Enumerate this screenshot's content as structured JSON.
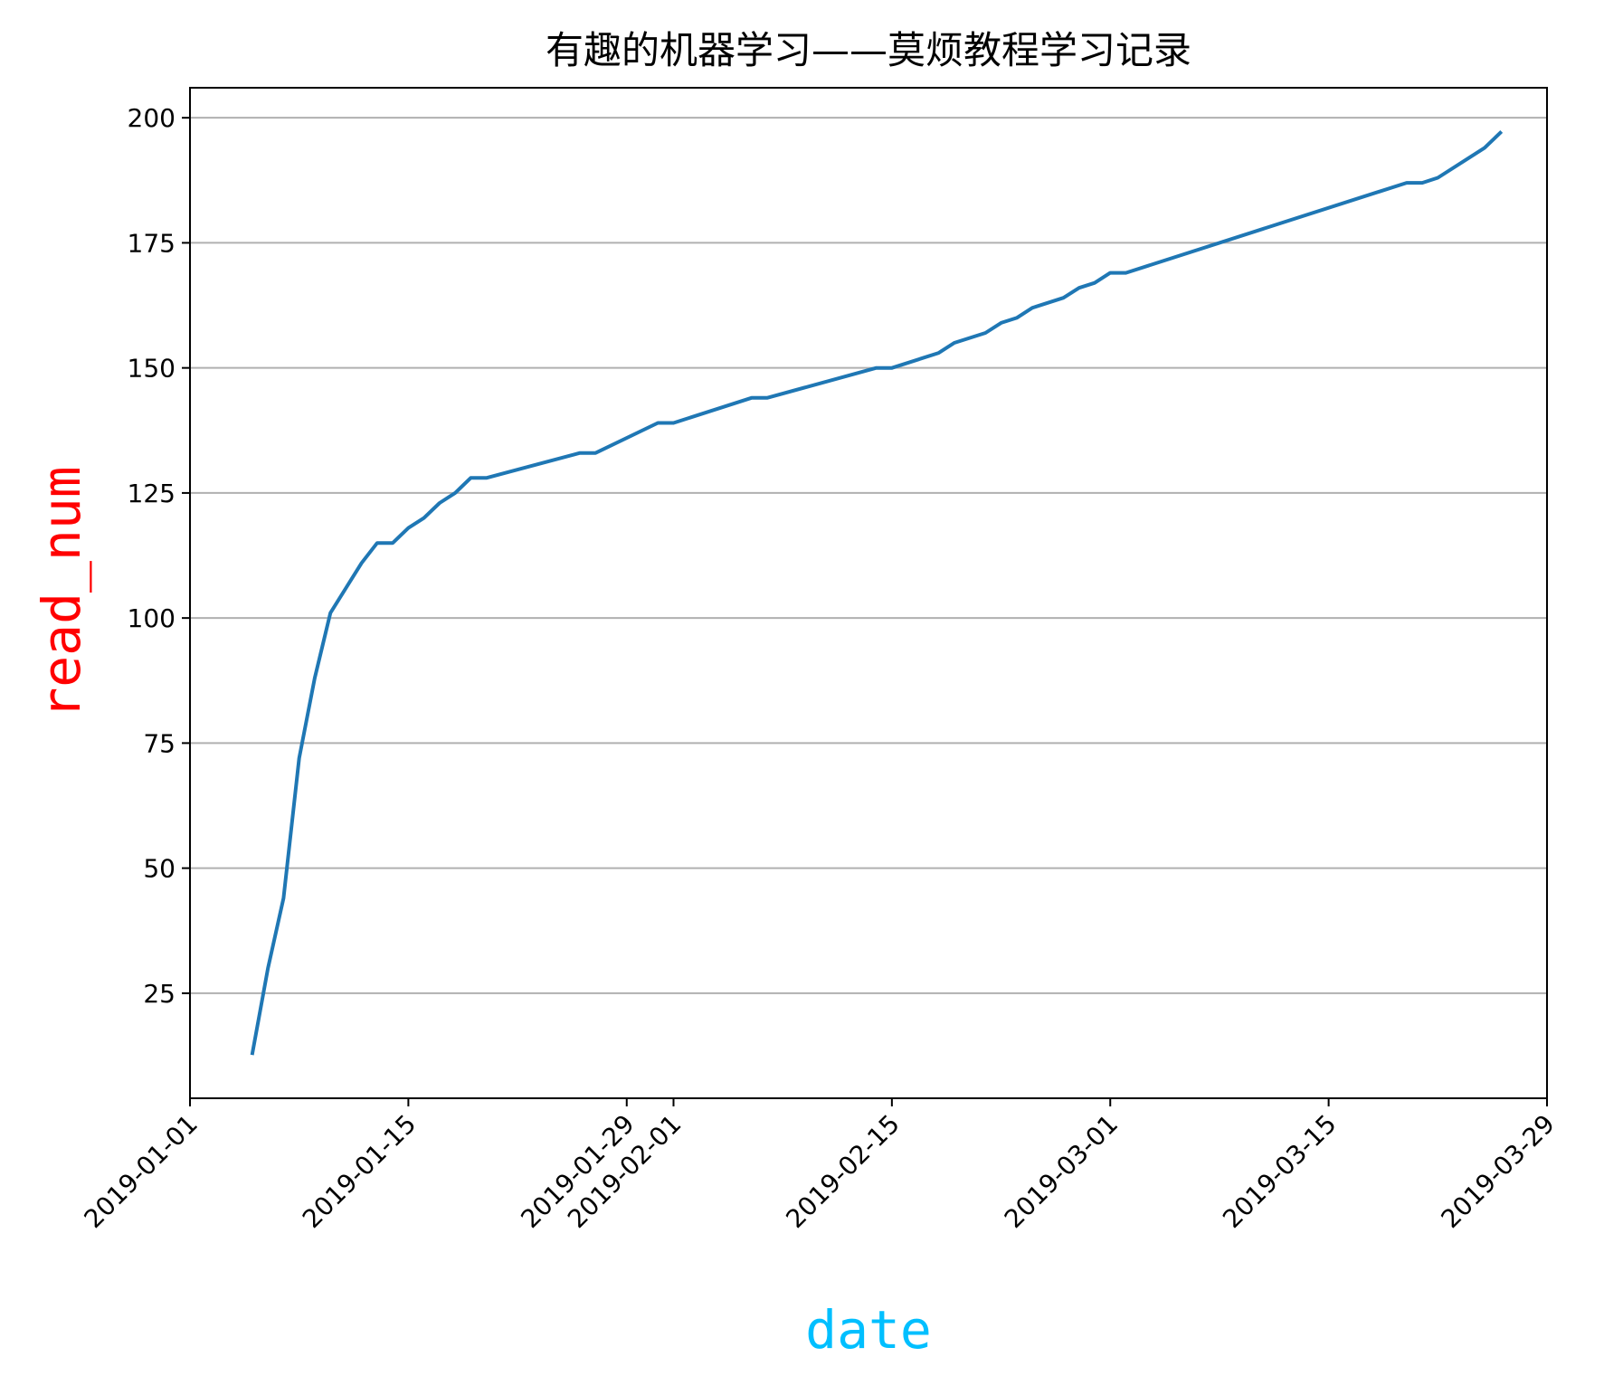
{
  "chart_data": {
    "type": "line",
    "title": "有趣的机器学习——莫烦教程学习记录",
    "xlabel": "date",
    "ylabel": "read_num",
    "xlim": [
      "2019-01-01",
      "2019-03-29"
    ],
    "ylim": [
      4,
      206
    ],
    "y_ticks": [
      25,
      50,
      75,
      100,
      125,
      150,
      175,
      200
    ],
    "x_ticks": [
      "2019-01-01",
      "2019-01-15",
      "2019-01-29",
      "2019-02-01",
      "2019-02-15",
      "2019-03-01",
      "2019-03-15",
      "2019-03-29"
    ],
    "grid": "y-only",
    "legend": "none",
    "colors": {
      "line": "#1f77b4",
      "xlabel": "#00bfff",
      "ylabel": "#ff0000",
      "grid": "#b0b0b0",
      "axes": "#000000"
    },
    "series": [
      {
        "x": [
          "2019-01-05",
          "2019-01-06",
          "2019-01-07",
          "2019-01-08",
          "2019-01-09",
          "2019-01-10",
          "2019-01-11",
          "2019-01-12",
          "2019-01-13",
          "2019-01-14",
          "2019-01-15",
          "2019-01-16",
          "2019-01-17",
          "2019-01-18",
          "2019-01-19",
          "2019-01-20",
          "2019-01-26",
          "2019-01-27",
          "2019-01-31",
          "2019-02-01",
          "2019-02-06",
          "2019-02-07",
          "2019-02-14",
          "2019-02-15",
          "2019-02-18",
          "2019-02-19",
          "2019-02-21",
          "2019-02-22",
          "2019-02-23",
          "2019-02-24",
          "2019-02-26",
          "2019-02-27",
          "2019-02-28",
          "2019-03-01",
          "2019-03-02",
          "2019-03-20",
          "2019-03-21",
          "2019-03-22",
          "2019-03-24",
          "2019-03-25",
          "2019-03-26"
        ],
        "values": [
          13,
          30,
          44,
          72,
          88,
          101,
          106,
          111,
          115,
          115,
          118,
          120,
          123,
          125,
          128,
          128,
          133,
          133,
          139,
          139,
          144,
          144,
          150,
          150,
          153,
          155,
          157,
          159,
          160,
          162,
          164,
          166,
          167,
          169,
          169,
          187,
          187,
          188,
          192,
          194,
          197
        ]
      }
    ]
  }
}
